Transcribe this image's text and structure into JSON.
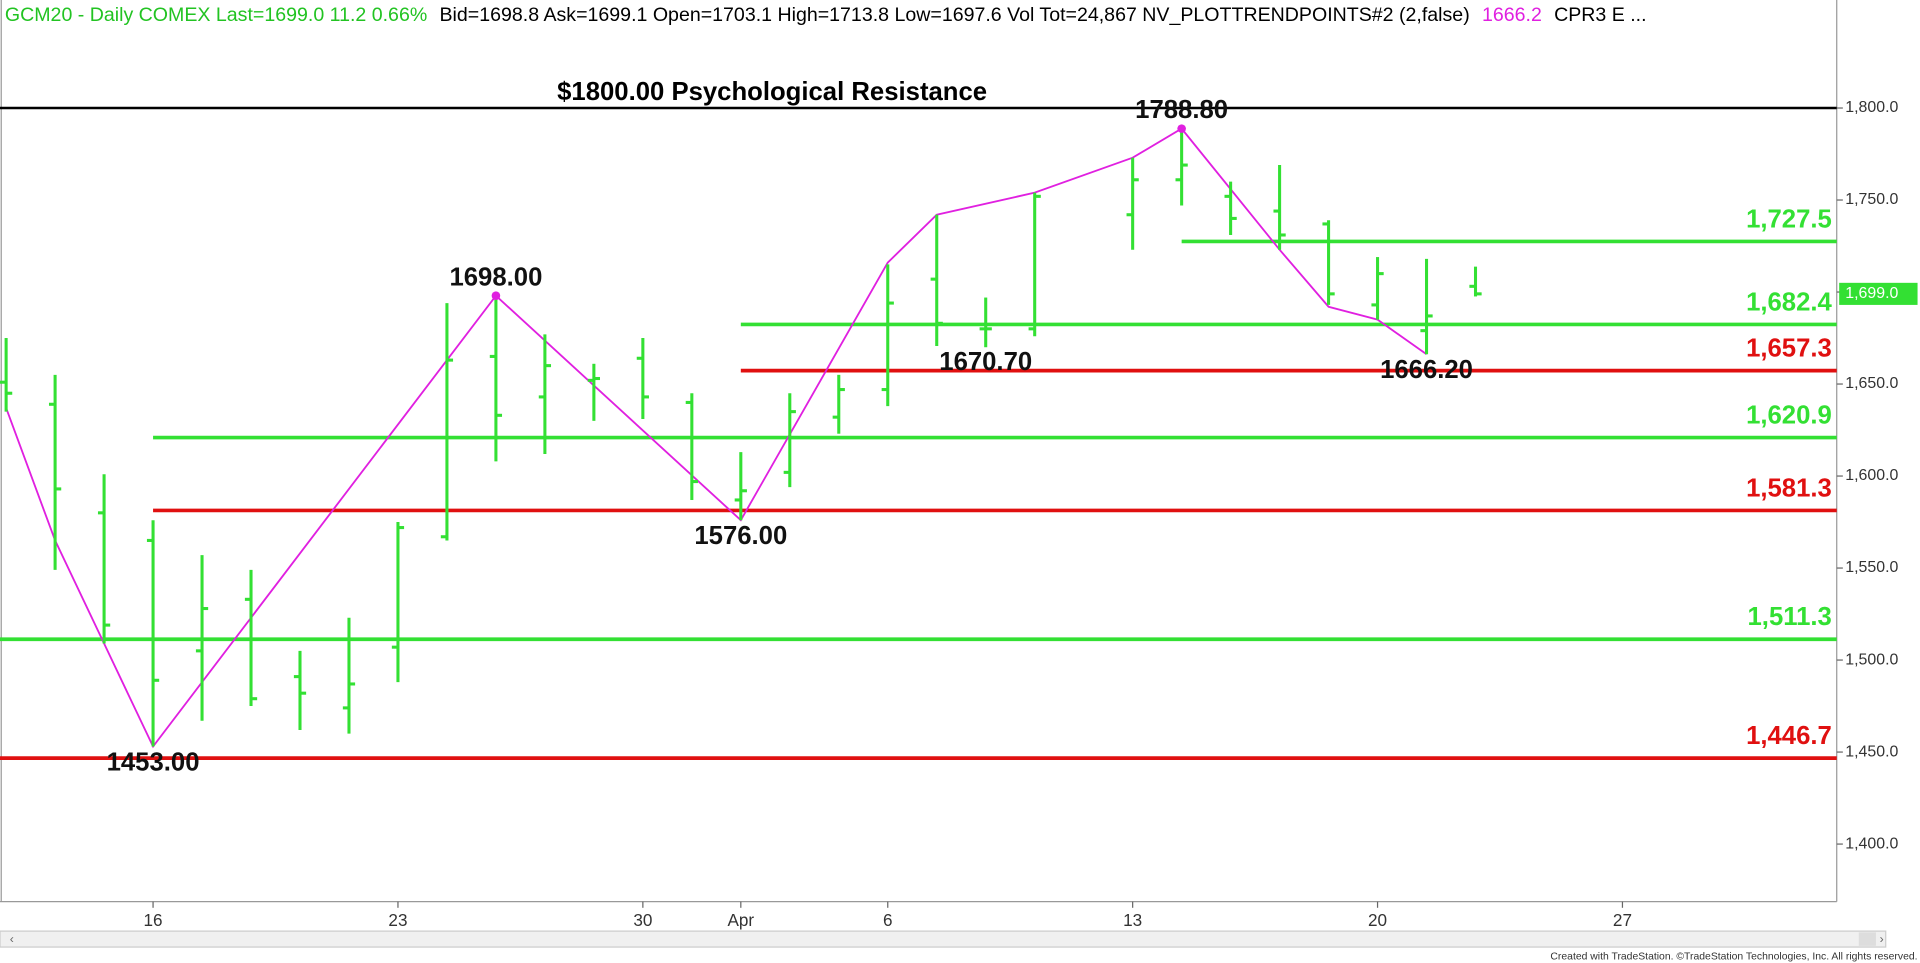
{
  "chart_data": {
    "type": "ohlc",
    "header": [
      {
        "text": "GCM20 - Daily  COMEX  Last=1699.0  11.2  0.66%",
        "color": "#22c322"
      },
      {
        "text": "Bid=1698.8  Ask=1699.1  Open=1703.1  High=1713.8  Low=1697.6  Vol Tot=24,867  NV_PLOTTRENDPOINTS#2 (2,false)",
        "color": "#000000"
      },
      {
        "text": "1666.2",
        "color": "#e020e0"
      },
      {
        "text": "CPR3 E ...",
        "color": "#000000"
      }
    ],
    "categories": [
      null,
      null,
      null,
      "16",
      null,
      null,
      null,
      null,
      "23",
      null,
      null,
      null,
      null,
      "30",
      null,
      "Apr",
      null,
      null,
      "6",
      null,
      null,
      null,
      null,
      "13",
      null,
      null,
      null,
      null,
      "20",
      null,
      null,
      null,
      null,
      "27",
      null,
      null,
      null,
      null
    ],
    "open": [
      1651,
      1639,
      1580,
      1565,
      1505,
      1533,
      1491,
      1474,
      1507,
      1567,
      1665,
      1643,
      1652,
      1664,
      1640,
      1587,
      1602,
      1632,
      1647,
      1707,
      1680,
      1680,
      null,
      1742,
      1761,
      1752,
      1744,
      1737,
      1693,
      1679,
      1703.1,
      null,
      null,
      null,
      null,
      null,
      null,
      null
    ],
    "high": [
      1675,
      1655,
      1601,
      1576,
      1557,
      1549,
      1505,
      1523,
      1575,
      1694,
      1698,
      1677,
      1661,
      1675,
      1645,
      1613,
      1645,
      1655,
      1715,
      1742,
      1697,
      1754,
      null,
      1773,
      1788.8,
      1760,
      1769,
      1739,
      1719,
      1718,
      1713.8,
      null,
      null,
      null,
      null,
      null,
      null,
      null
    ],
    "low": [
      1635,
      1549,
      1509,
      1453,
      1467,
      1475,
      1462,
      1460,
      1488,
      1565,
      1608,
      1612,
      1630,
      1631,
      1587,
      1576,
      1594,
      1623,
      1638,
      1670.7,
      1670,
      1676,
      null,
      1723,
      1747,
      1731,
      1723,
      1693,
      1685,
      1666.2,
      1697.6,
      null,
      null,
      null,
      null,
      null,
      null,
      null
    ],
    "close": [
      1645,
      1593,
      1519,
      1489,
      1528,
      1479,
      1482,
      1487,
      1572,
      1663,
      1633,
      1660,
      1653,
      1643,
      1597,
      1592,
      1635,
      1647,
      1694,
      1683,
      1680,
      1752,
      null,
      1761,
      1769,
      1740,
      1731,
      1699,
      1710,
      1687,
      1699,
      null,
      null,
      null,
      null,
      null,
      null,
      null
    ],
    "bar_color": "#33e033",
    "trend": {
      "color": "#e020e0",
      "x": [
        0,
        1,
        2,
        3,
        10,
        15,
        18,
        19,
        21,
        23,
        24,
        26,
        27,
        28,
        29
      ],
      "values": [
        1637,
        1565,
        1509,
        1453,
        1698,
        1576,
        1716,
        1742,
        1754,
        1773,
        1788.8,
        1723,
        1692,
        1685,
        1666.2
      ],
      "value_labels": [
        null,
        null,
        null,
        "1453.00",
        "1698.00",
        "1576.00",
        null,
        null,
        null,
        null,
        "1788.80",
        null,
        null,
        null,
        "1666.20"
      ]
    },
    "annotations": [
      {
        "text": "1670.70",
        "x": 20,
        "value": 1670.7
      }
    ],
    "resistance": {
      "value": 1800,
      "label": "$1800.00 Psychological Resistance",
      "color": "#000000"
    },
    "levels": [
      {
        "value": 1727.5,
        "label": "1,727.5",
        "color": "#33e033",
        "from": 24
      },
      {
        "value": 1682.4,
        "label": "1,682.4",
        "color": "#33e033",
        "from": 15
      },
      {
        "value": 1657.3,
        "label": "1,657.3",
        "color": "#e01010",
        "from": 15
      },
      {
        "value": 1620.9,
        "label": "1,620.9",
        "color": "#33e033",
        "from": 3
      },
      {
        "value": 1581.3,
        "label": "1,581.3",
        "color": "#e01010",
        "from": 3
      },
      {
        "value": 1511.3,
        "label": "1,511.3",
        "color": "#33e033"
      },
      {
        "value": 1446.7,
        "label": "1,446.7",
        "color": "#e01010"
      }
    ],
    "last_price": {
      "value": 1699.0,
      "label": "1,699.0",
      "color": "#33e033"
    },
    "ylim": [
      1368.7,
      1858.7
    ],
    "yticks": [
      {
        "value": 1400,
        "label": "1,400.0"
      },
      {
        "value": 1450,
        "label": "1,450.0"
      },
      {
        "value": 1500,
        "label": "1,500.0"
      },
      {
        "value": 1550,
        "label": "1,550.0"
      },
      {
        "value": 1600,
        "label": "1,600.0"
      },
      {
        "value": 1650,
        "label": "1,650.0"
      },
      {
        "value": 1700,
        "label": "1,700.0"
      },
      {
        "value": 1750,
        "label": "1,750.0"
      },
      {
        "value": 1800,
        "label": "1,800.0"
      }
    ],
    "footer": "Created with TradeStation. ©TradeStation Technologies, Inc. All rights reserved."
  }
}
